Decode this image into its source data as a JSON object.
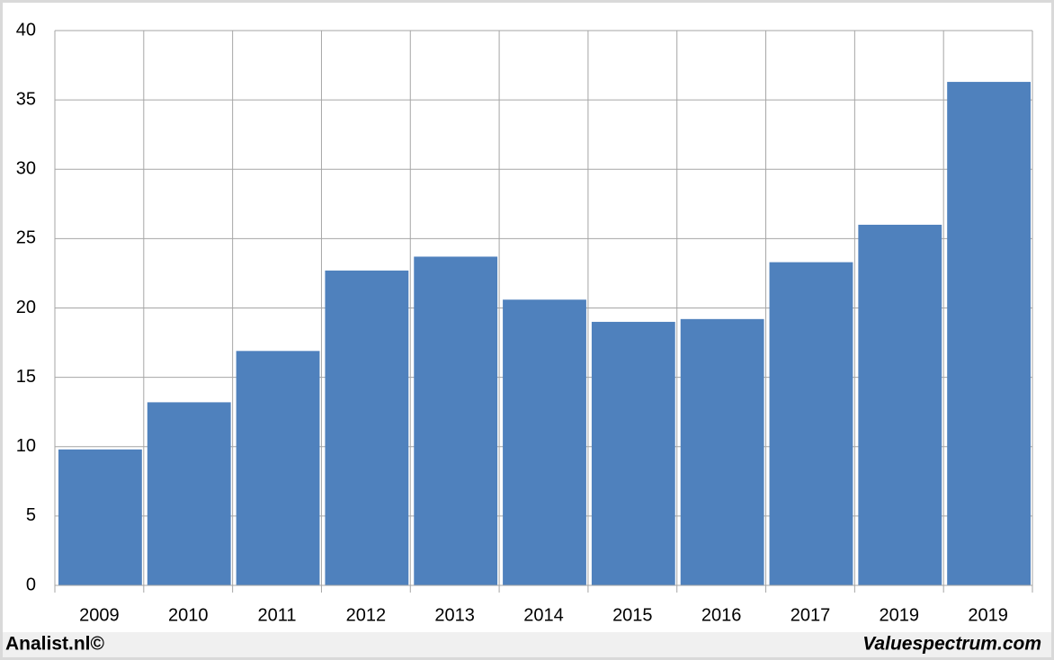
{
  "chart_data": {
    "type": "bar",
    "categories": [
      "2009",
      "2010",
      "2011",
      "2012",
      "2013",
      "2014",
      "2015",
      "2016",
      "2017",
      "2019",
      "2019"
    ],
    "values": [
      9.8,
      13.2,
      16.9,
      22.7,
      23.7,
      20.6,
      19.0,
      19.2,
      23.3,
      26.0,
      36.3
    ],
    "color": "#4f81bd",
    "ylim": [
      0,
      40
    ],
    "yticks": [
      0,
      5,
      10,
      15,
      20,
      25,
      30,
      35,
      40
    ],
    "grid": true,
    "credit_left": "Analist.nl©",
    "credit_right": "Valuespectrum.com"
  }
}
